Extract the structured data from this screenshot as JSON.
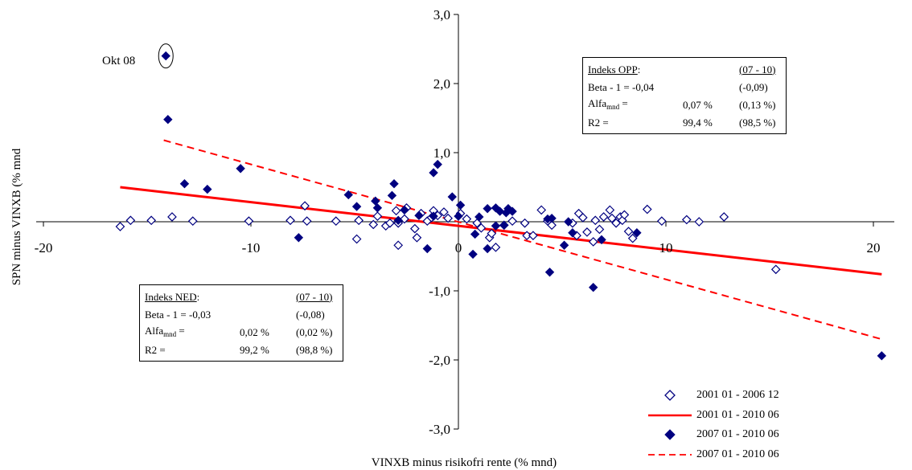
{
  "chart_data": {
    "type": "scatter",
    "title": "",
    "xlabel": "VINXB minus risikofri rente (% mnd)",
    "ylabel": "SPN minus VINXB (% mnd",
    "xlim": [
      -20,
      20
    ],
    "ylim": [
      -3.0,
      3.0
    ],
    "x_ticks": [
      "-20",
      "-10",
      "0",
      "10",
      "20"
    ],
    "x_tick_values": [
      -20,
      -10,
      0,
      10,
      20
    ],
    "y_ticks": [
      "3,0",
      "2,0",
      "1,0",
      "0",
      "-1,0",
      "-2,0",
      "-3,0"
    ],
    "y_tick_values": [
      3,
      2,
      1,
      0,
      -1,
      -2,
      -3
    ],
    "annotation": "Okt 08",
    "series": [
      {
        "name": "2001 01 - 2006 12",
        "kind": "scatter",
        "marker": "hollow-diamond",
        "color": "#000080",
        "points": [
          [
            -16.3,
            -0.07
          ],
          [
            -15.8,
            0.02
          ],
          [
            -14.8,
            0.02
          ],
          [
            -13.8,
            0.07
          ],
          [
            -12.8,
            0.01
          ],
          [
            -10.1,
            0.01
          ],
          [
            -8.1,
            0.02
          ],
          [
            -7.4,
            0.23
          ],
          [
            -7.3,
            0.01
          ],
          [
            -5.9,
            0.01
          ],
          [
            -4.8,
            0.02
          ],
          [
            -4.9,
            -0.25
          ],
          [
            -4.1,
            -0.04
          ],
          [
            -3.9,
            0.08
          ],
          [
            -3.5,
            -0.06
          ],
          [
            -3.3,
            -0.02
          ],
          [
            -2.9,
            -0.02
          ],
          [
            -3.0,
            0.16
          ],
          [
            -2.6,
            0.04
          ],
          [
            -2.5,
            0.2
          ],
          [
            -2.1,
            -0.1
          ],
          [
            -2.0,
            -0.23
          ],
          [
            -1.8,
            0.12
          ],
          [
            -1.5,
            0.01
          ],
          [
            -1.2,
            0.16
          ],
          [
            -1.0,
            0.09
          ],
          [
            -0.5,
            0.05
          ],
          [
            -0.7,
            0.14
          ],
          [
            -2.9,
            -0.34
          ],
          [
            -1.3,
            0.06
          ],
          [
            0.1,
            0.12
          ],
          [
            0.4,
            0.04
          ],
          [
            0.9,
            -0.02
          ],
          [
            1.1,
            -0.09
          ],
          [
            1.5,
            -0.23
          ],
          [
            1.6,
            -0.17
          ],
          [
            1.8,
            -0.37
          ],
          [
            2.2,
            -0.05
          ],
          [
            2.6,
            0.01
          ],
          [
            3.2,
            -0.02
          ],
          [
            3.3,
            -0.2
          ],
          [
            3.6,
            -0.2
          ],
          [
            4.0,
            0.17
          ],
          [
            4.3,
            0.01
          ],
          [
            4.5,
            -0.05
          ],
          [
            5.5,
            -0.02
          ],
          [
            5.7,
            -0.2
          ],
          [
            5.8,
            0.12
          ],
          [
            6.0,
            0.06
          ],
          [
            6.2,
            -0.15
          ],
          [
            6.5,
            -0.29
          ],
          [
            6.6,
            0.02
          ],
          [
            6.8,
            -0.11
          ],
          [
            7.0,
            0.07
          ],
          [
            7.3,
            0.17
          ],
          [
            7.4,
            0.05
          ],
          [
            7.6,
            -0.02
          ],
          [
            7.8,
            0.07
          ],
          [
            7.9,
            0.02
          ],
          [
            8.0,
            0.1
          ],
          [
            8.2,
            -0.14
          ],
          [
            8.4,
            -0.24
          ],
          [
            9.1,
            0.18
          ],
          [
            9.8,
            0.01
          ],
          [
            11.0,
            0.03
          ],
          [
            11.6,
            0.0
          ],
          [
            12.8,
            0.07
          ],
          [
            15.3,
            -0.69
          ]
        ]
      },
      {
        "name": "2001 01 - 2010 06",
        "kind": "line",
        "style": "solid",
        "color": "#ff0000",
        "points": [
          [
            -16.3,
            0.5
          ],
          [
            20.4,
            -0.76
          ]
        ]
      },
      {
        "name": "2007 01 - 2010 06",
        "kind": "scatter",
        "marker": "filled-diamond",
        "color": "#000080",
        "points": [
          [
            -14.1,
            2.4
          ],
          [
            -14.0,
            1.48
          ],
          [
            -13.2,
            0.55
          ],
          [
            -12.1,
            0.47
          ],
          [
            -10.5,
            0.77
          ],
          [
            -7.7,
            -0.23
          ],
          [
            -5.3,
            0.39
          ],
          [
            -4.9,
            0.22
          ],
          [
            -4.0,
            0.3
          ],
          [
            -3.9,
            0.2
          ],
          [
            -3.2,
            0.38
          ],
          [
            -3.1,
            0.55
          ],
          [
            -2.9,
            0.02
          ],
          [
            -2.6,
            0.17
          ],
          [
            -1.9,
            0.09
          ],
          [
            -1.5,
            -0.39
          ],
          [
            -1.2,
            0.08
          ],
          [
            -1.2,
            0.71
          ],
          [
            -1.0,
            0.83
          ],
          [
            -0.3,
            0.36
          ],
          [
            0.0,
            0.08
          ],
          [
            0.1,
            0.24
          ],
          [
            0.7,
            -0.47
          ],
          [
            0.8,
            -0.18
          ],
          [
            1.0,
            0.07
          ],
          [
            1.4,
            0.19
          ],
          [
            1.4,
            -0.39
          ],
          [
            1.8,
            0.2
          ],
          [
            1.8,
            -0.06
          ],
          [
            2.0,
            0.15
          ],
          [
            2.2,
            -0.05
          ],
          [
            2.3,
            0.13
          ],
          [
            2.4,
            0.19
          ],
          [
            2.6,
            0.15
          ],
          [
            4.3,
            0.04
          ],
          [
            4.4,
            -0.73
          ],
          [
            4.5,
            0.05
          ],
          [
            5.1,
            -0.34
          ],
          [
            5.3,
            0.0
          ],
          [
            5.5,
            -0.16
          ],
          [
            6.5,
            -0.95
          ],
          [
            6.9,
            -0.26
          ],
          [
            8.6,
            -0.16
          ],
          [
            20.4,
            -1.94
          ]
        ]
      },
      {
        "name": "2007 01 - 2010 06",
        "kind": "line",
        "style": "dashed",
        "color": "#ff0000",
        "points": [
          [
            -14.2,
            1.18
          ],
          [
            20.4,
            -1.7
          ]
        ]
      }
    ]
  },
  "stats_opp": {
    "title": "Indeks OPP",
    "title_suffix": ":",
    "period": "(07 - 10)",
    "rows": [
      {
        "label": "Beta - 1 = -0,04",
        "value": "",
        "alt": "(-0,09)"
      },
      {
        "label_main": "Alfa",
        "label_sub": "mnd",
        "label_suffix": " =",
        "value": "0,07 %",
        "alt": "(0,13 %)"
      },
      {
        "label": "R2 =",
        "value": "99,4 %",
        "alt": "(98,5 %)"
      }
    ]
  },
  "stats_ned": {
    "title": "Indeks NED",
    "title_suffix": ":",
    "period": "(07 - 10)",
    "rows": [
      {
        "label": "Beta - 1 = -0,03",
        "value": "",
        "alt": "(-0,08)"
      },
      {
        "label_main": "Alfa",
        "label_sub": "mnd",
        "label_suffix": " =",
        "value": "0,02 %",
        "alt": "(0,02 %)"
      },
      {
        "label": "R2 =",
        "value": "99,2 %",
        "alt": "(98,8 %)"
      }
    ]
  },
  "legend": [
    {
      "symbol": "hollow-diamond",
      "label": "2001 01 - 2006 12"
    },
    {
      "symbol": "solid-line",
      "label": "2001 01 - 2010 06"
    },
    {
      "symbol": "filled-diamond",
      "label": "2007 01 - 2010 06"
    },
    {
      "symbol": "dashed-line",
      "label": "2007 01 - 2010 06"
    }
  ]
}
